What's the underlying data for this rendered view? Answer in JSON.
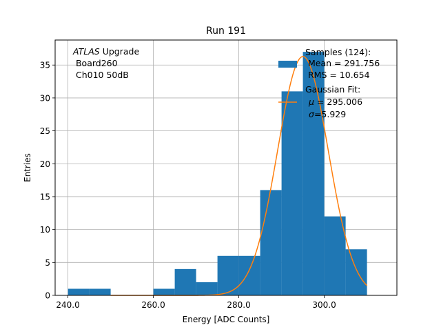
{
  "chart_data": {
    "type": "bar",
    "title": "Run 191",
    "xlabel": "Energy [ADC Counts]",
    "ylabel": "Entries",
    "xlim": [
      237,
      317
    ],
    "ylim": [
      0,
      38.8
    ],
    "grid": true,
    "xticks": [
      240,
      260,
      280,
      300
    ],
    "xtick_labels": [
      "240.0",
      "260.0",
      "280.0",
      "300.0"
    ],
    "yticks": [
      0,
      5,
      10,
      15,
      20,
      25,
      30,
      35
    ],
    "ytick_labels": [
      "0",
      "5",
      "10",
      "15",
      "20",
      "25",
      "30",
      "35"
    ],
    "histogram": {
      "bin_edges": [
        240,
        245,
        250,
        255,
        260,
        265,
        270,
        275,
        280,
        285,
        290,
        295,
        300,
        305,
        310
      ],
      "counts": [
        1,
        1,
        0,
        0,
        1,
        4,
        2,
        6,
        6,
        16,
        31,
        37,
        12,
        7
      ],
      "color": "#1f77b4"
    },
    "fit": {
      "type": "gaussian",
      "mu": 295.006,
      "sigma": 5.929,
      "amplitude": 36.3,
      "x_range": [
        250,
        310
      ],
      "color": "#ff7f0e"
    },
    "annotation": {
      "atlas_italic": "ATLAS",
      "atlas_rest": " Upgrade",
      "line2": " Board260",
      "line3": " Ch010 50dB"
    },
    "legend": {
      "placement": "top-right",
      "samples_line1": "Samples (124):",
      "samples_line2": " Mean = 291.756",
      "samples_line3": " RMS = 10.654",
      "fit_line1": "Gaussian Fit:",
      "fit_mu_symbol": "μ",
      "fit_mu_rest": " = 295.006",
      "fit_sigma_symbol": "σ",
      "fit_sigma_rest": "=5.929"
    }
  }
}
